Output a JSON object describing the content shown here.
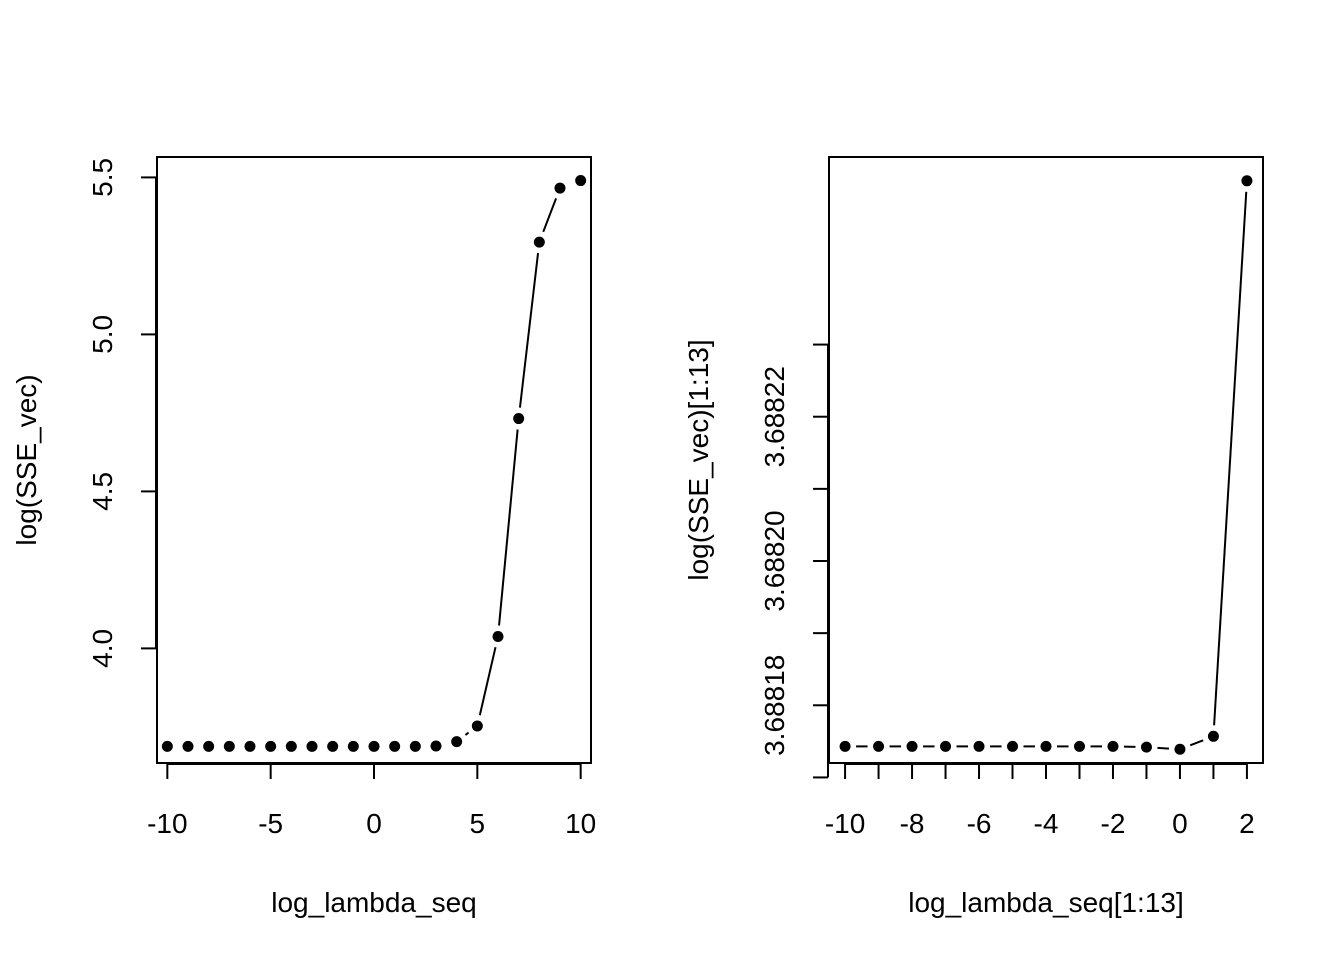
{
  "chart_data": [
    {
      "type": "scatter",
      "plot_style": "points connected by line segments",
      "xlabel": "log_lambda_seq",
      "ylabel": "log(SSE_vec)",
      "xlim": [
        -10.5,
        10.5
      ],
      "ylim": [
        3.635,
        5.565
      ],
      "x_ticks": [
        -10,
        -5,
        0,
        5,
        10
      ],
      "x_tick_labels": [
        "-10",
        "-5",
        "0",
        "5",
        "10"
      ],
      "y_ticks": [
        4.0,
        4.5,
        5.0,
        5.5
      ],
      "y_tick_labels": [
        "4.0",
        "4.5",
        "5.0",
        "5.5"
      ],
      "grid": false,
      "x": [
        -10,
        -9,
        -8,
        -7,
        -6,
        -5,
        -4,
        -3,
        -2,
        -1,
        0,
        1,
        2,
        3,
        4,
        5,
        6,
        7,
        8,
        9,
        10
      ],
      "y": [
        3.688,
        3.688,
        3.688,
        3.688,
        3.688,
        3.688,
        3.688,
        3.688,
        3.688,
        3.688,
        3.688,
        3.688,
        3.688,
        3.689,
        3.703,
        3.753,
        4.038,
        4.732,
        5.294,
        5.466,
        5.49
      ]
    },
    {
      "type": "scatter",
      "plot_style": "points connected by line segments",
      "xlabel": "log_lambda_seq[1:13]",
      "ylabel": "log(SSE_vec)[1:13]",
      "xlim": [
        -10.48,
        2.48
      ],
      "ylim": [
        3.688172,
        3.688256
      ],
      "x_ticks": [
        -10,
        -9,
        -8,
        -7,
        -6,
        -5,
        -4,
        -3,
        -2,
        -1,
        0,
        1,
        2
      ],
      "x_tick_labels": [
        "-10",
        "",
        "-8",
        "",
        "-6",
        "",
        "-4",
        "",
        "-2",
        "",
        "0",
        "",
        "2"
      ],
      "y_ticks": [
        3.68817,
        3.68818,
        3.68819,
        3.6882,
        3.68821,
        3.68822,
        3.68823
      ],
      "y_tick_labels": [
        "",
        "3.68818",
        "",
        "3.68820",
        "",
        "3.68822",
        ""
      ],
      "grid": false,
      "x": [
        -10,
        -9,
        -8,
        -7,
        -6,
        -5,
        -4,
        -3,
        -2,
        -1,
        0,
        1,
        2
      ],
      "y": [
        3.6881743,
        3.6881743,
        3.6881743,
        3.6881743,
        3.6881743,
        3.6881743,
        3.6881743,
        3.6881743,
        3.6881743,
        3.6881742,
        3.6881739,
        3.6881757,
        3.6882527
      ]
    }
  ]
}
